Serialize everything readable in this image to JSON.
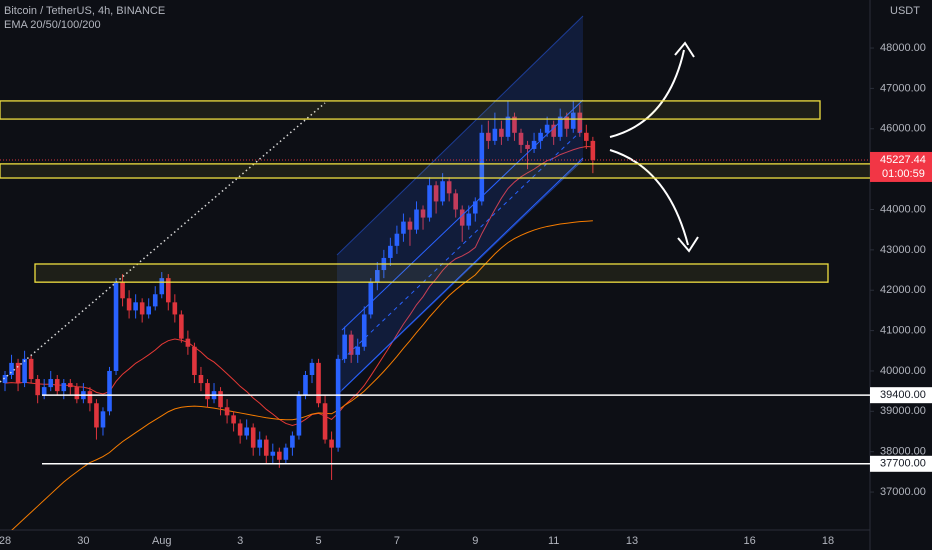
{
  "chart_data": {
    "type": "candlestick",
    "title": "Bitcoin / TetherUS, 4h, BINANCE",
    "indicator_label": "EMA 20/50/100/200",
    "currency": "USDT",
    "countdown": "01:00:59",
    "up_color": "#2962ff",
    "down_color": "#e0353d",
    "categories": [
      "28",
      null,
      null,
      null,
      null,
      null,
      null,
      null,
      null,
      null,
      null,
      null,
      "30",
      null,
      null,
      null,
      null,
      null,
      null,
      null,
      null,
      null,
      null,
      null,
      "Aug",
      null,
      null,
      null,
      null,
      null,
      null,
      null,
      null,
      null,
      null,
      null,
      "3",
      null,
      null,
      null,
      null,
      null,
      null,
      null,
      null,
      null,
      null,
      null,
      "5",
      null,
      null,
      null,
      null,
      null,
      null,
      null,
      null,
      null,
      null,
      null,
      "7",
      null,
      null,
      null,
      null,
      null,
      null,
      null,
      null,
      null,
      null,
      null,
      "9",
      null,
      null,
      null,
      null,
      null,
      null,
      null,
      null,
      null,
      null,
      null,
      "11",
      null,
      null,
      null,
      null,
      null,
      null,
      null,
      null,
      null,
      null,
      null,
      "13",
      null,
      null,
      null,
      null,
      null,
      null,
      null,
      null,
      null,
      null,
      null,
      null,
      null,
      null,
      null,
      null,
      null,
      "16",
      null,
      null,
      null,
      null,
      null,
      null,
      null,
      null,
      null,
      null,
      null,
      "18"
    ],
    "ohlc": [
      [
        39700,
        40000,
        39500,
        39900
      ],
      [
        39900,
        40400,
        39800,
        40200
      ],
      [
        40200,
        40300,
        39500,
        39700
      ],
      [
        39700,
        40500,
        39600,
        40300
      ],
      [
        40300,
        40400,
        39700,
        39800
      ],
      [
        39800,
        39900,
        39200,
        39400
      ],
      [
        39400,
        39800,
        39300,
        39600
      ],
      [
        39600,
        40000,
        39500,
        39800
      ],
      [
        39800,
        39900,
        39400,
        39500
      ],
      [
        39500,
        39800,
        39300,
        39700
      ],
      [
        39700,
        39800,
        39400,
        39600
      ],
      [
        39600,
        39700,
        39200,
        39300
      ],
      [
        39300,
        39700,
        39200,
        39500
      ],
      [
        39500,
        39600,
        39000,
        39200
      ],
      [
        39200,
        39300,
        38300,
        38600
      ],
      [
        38600,
        39100,
        38400,
        39000
      ],
      [
        39000,
        40100,
        38900,
        40000
      ],
      [
        40000,
        42300,
        39900,
        42200
      ],
      [
        42200,
        42400,
        41600,
        41800
      ],
      [
        41800,
        42000,
        41300,
        41500
      ],
      [
        41500,
        41900,
        41300,
        41700
      ],
      [
        41700,
        41800,
        41200,
        41400
      ],
      [
        41400,
        41800,
        41300,
        41600
      ],
      [
        41600,
        42100,
        41500,
        41900
      ],
      [
        41900,
        42450,
        41800,
        42300
      ],
      [
        42300,
        42400,
        41500,
        41700
      ],
      [
        41700,
        41900,
        41200,
        41400
      ],
      [
        41400,
        41500,
        40700,
        40800
      ],
      [
        40800,
        41000,
        40400,
        40600
      ],
      [
        40600,
        40700,
        39700,
        39900
      ],
      [
        39900,
        40100,
        39500,
        39700
      ],
      [
        39700,
        39800,
        39100,
        39300
      ],
      [
        39300,
        39700,
        39200,
        39500
      ],
      [
        39500,
        39600,
        38900,
        39100
      ],
      [
        39100,
        39300,
        38700,
        38900
      ],
      [
        38900,
        39000,
        38500,
        38700
      ],
      [
        38700,
        38800,
        38200,
        38400
      ],
      [
        38400,
        38800,
        38300,
        38600
      ],
      [
        38600,
        38700,
        37900,
        38100
      ],
      [
        38100,
        38500,
        37900,
        38300
      ],
      [
        38300,
        38400,
        37700,
        37900
      ],
      [
        37900,
        38200,
        37700,
        38000
      ],
      [
        38000,
        38100,
        37600,
        37800
      ],
      [
        37800,
        38200,
        37700,
        38100
      ],
      [
        38100,
        38500,
        37900,
        38400
      ],
      [
        38400,
        39500,
        38300,
        39400
      ],
      [
        39400,
        40000,
        39300,
        39900
      ],
      [
        39900,
        40300,
        39700,
        40200
      ],
      [
        40200,
        40300,
        39100,
        39200
      ],
      [
        39200,
        39400,
        38200,
        38300
      ],
      [
        38300,
        38500,
        37300,
        38100
      ],
      [
        38100,
        40400,
        38000,
        40300
      ],
      [
        40300,
        41100,
        40200,
        40900
      ],
      [
        40900,
        41000,
        40200,
        40400
      ],
      [
        40400,
        40800,
        40200,
        40600
      ],
      [
        40600,
        41600,
        40500,
        41400
      ],
      [
        41400,
        42300,
        41300,
        42200
      ],
      [
        42200,
        42700,
        42000,
        42500
      ],
      [
        42500,
        43000,
        42300,
        42800
      ],
      [
        42800,
        43300,
        42600,
        43100
      ],
      [
        43100,
        43600,
        42900,
        43400
      ],
      [
        43400,
        43900,
        43200,
        43700
      ],
      [
        43700,
        43800,
        43100,
        43500
      ],
      [
        43500,
        44200,
        43400,
        44000
      ],
      [
        44000,
        44100,
        43500,
        43800
      ],
      [
        43800,
        44800,
        43700,
        44600
      ],
      [
        44600,
        44700,
        43900,
        44200
      ],
      [
        44200,
        44900,
        44100,
        44700
      ],
      [
        44700,
        44800,
        44200,
        44400
      ],
      [
        44400,
        44500,
        43800,
        44000
      ],
      [
        44000,
        44100,
        43200,
        43600
      ],
      [
        43600,
        44100,
        43500,
        43900
      ],
      [
        43900,
        44300,
        43700,
        44200
      ],
      [
        44200,
        46100,
        44100,
        45900
      ],
      [
        45900,
        46200,
        45500,
        45700
      ],
      [
        45700,
        46400,
        45600,
        46000
      ],
      [
        46000,
        46200,
        45600,
        45800
      ],
      [
        45800,
        46700,
        45700,
        46300
      ],
      [
        46300,
        46400,
        45700,
        45900
      ],
      [
        45900,
        46000,
        45400,
        45600
      ],
      [
        45600,
        45700,
        45000,
        45500
      ],
      [
        45500,
        45900,
        45400,
        45700
      ],
      [
        45700,
        46000,
        45500,
        45900
      ],
      [
        45900,
        46300,
        45800,
        46100
      ],
      [
        46100,
        46200,
        45600,
        45800
      ],
      [
        45800,
        46500,
        45700,
        46300
      ],
      [
        46300,
        46400,
        45800,
        46000
      ],
      [
        46000,
        46700,
        45900,
        46400
      ],
      [
        46400,
        46600,
        45800,
        45900
      ],
      [
        45900,
        46100,
        45500,
        45700
      ],
      [
        45700,
        45800,
        44900,
        45227.44
      ],
      null,
      null,
      null,
      null,
      null,
      null,
      null,
      null,
      null,
      null,
      null,
      null,
      null,
      null,
      null,
      null,
      null,
      null,
      null,
      null,
      null,
      null,
      null,
      null,
      null,
      null,
      null,
      null,
      null,
      null,
      null,
      null,
      null,
      null,
      null,
      null
    ],
    "emas": [
      {
        "color": "#e53935",
        "values": [
          39700,
          39710,
          39700,
          39720,
          39700,
          39680,
          39670,
          39670,
          39650,
          39650,
          39640,
          39610,
          39600,
          39560,
          39470,
          39430,
          39490,
          39740,
          39920,
          40050,
          40190,
          40290,
          40400,
          40520,
          40660,
          40750,
          40790,
          40760,
          40710,
          40590,
          40470,
          40320,
          40220,
          40080,
          39930,
          39780,
          39620,
          39490,
          39330,
          39200,
          39050,
          38930,
          38800,
          38700,
          38650,
          38700,
          38800,
          38920,
          38950,
          38880,
          38800,
          38950,
          39150,
          39300,
          39450,
          39640,
          39880,
          40130,
          40380,
          40630,
          40900,
          41160,
          41390,
          41640,
          41840,
          42090,
          42280,
          42490,
          42660,
          42780,
          42850,
          42940,
          43060,
          43400,
          43700,
          44000,
          44280,
          44520,
          44680,
          44810,
          44910,
          45000,
          45110,
          45210,
          45270,
          45360,
          45420,
          45480,
          45530,
          45560,
          45550,
          null,
          null,
          null,
          null,
          null,
          null,
          null,
          null,
          null,
          null,
          null,
          null,
          null,
          null,
          null,
          null,
          null,
          null,
          null,
          null,
          null,
          null,
          null,
          null,
          null,
          null,
          null,
          null,
          null,
          null,
          null,
          null,
          null,
          null,
          null,
          null
        ]
      },
      {
        "color": "#f57c00",
        "values": [
          35900,
          36050,
          36200,
          36350,
          36500,
          36650,
          36800,
          36950,
          37100,
          37250,
          37380,
          37500,
          37620,
          37730,
          37800,
          37880,
          37980,
          38120,
          38250,
          38360,
          38470,
          38580,
          38690,
          38790,
          38890,
          38990,
          39060,
          39100,
          39120,
          39130,
          39120,
          39100,
          39080,
          39050,
          39020,
          38990,
          38960,
          38930,
          38900,
          38870,
          38840,
          38820,
          38800,
          38790,
          38790,
          38820,
          38870,
          38930,
          38960,
          38950,
          38940,
          39030,
          39150,
          39250,
          39370,
          39500,
          39660,
          39820,
          39990,
          40170,
          40360,
          40560,
          40750,
          40950,
          41140,
          41340,
          41520,
          41700,
          41870,
          42010,
          42140,
          42260,
          42380,
          42560,
          42730,
          42900,
          43050,
          43180,
          43280,
          43360,
          43430,
          43490,
          43540,
          43580,
          43610,
          43640,
          43660,
          43680,
          43700,
          43710,
          43720,
          null,
          null,
          null,
          null,
          null,
          null,
          null,
          null,
          null,
          null,
          null,
          null,
          null,
          null,
          null,
          null,
          null,
          null,
          null,
          null,
          null,
          null,
          null,
          null,
          null,
          null,
          null,
          null,
          null,
          null,
          null,
          null,
          null,
          null,
          null,
          null
        ]
      }
    ],
    "zones": [
      [
        46240,
        46690
      ],
      [
        44780,
        45130
      ],
      [
        42200,
        42650
      ]
    ],
    "zone_color": "#f0e040",
    "hlines": [
      {
        "value": 39400,
        "label": "39400.00"
      },
      {
        "value": 37700,
        "label": "37700.00"
      }
    ],
    "ylim": [
      36060,
      49190
    ],
    "yticks": [
      {
        "value": 37000,
        "label": "37000.00"
      },
      {
        "value": 38000,
        "label": "38000.00"
      },
      {
        "value": 39000,
        "label": "39000.00"
      },
      {
        "value": 40000,
        "label": "40000.00"
      },
      {
        "value": 41000,
        "label": "41000.00"
      },
      {
        "value": 42000,
        "label": "42000.00"
      },
      {
        "value": 43000,
        "label": "43000.00"
      },
      {
        "value": 44000,
        "label": "44000.00"
      },
      {
        "value": 46000,
        "label": "46000.00"
      },
      {
        "value": 47000,
        "label": "47000.00"
      },
      {
        "value": 48000,
        "label": "48000.00"
      }
    ],
    "grid": false
  }
}
